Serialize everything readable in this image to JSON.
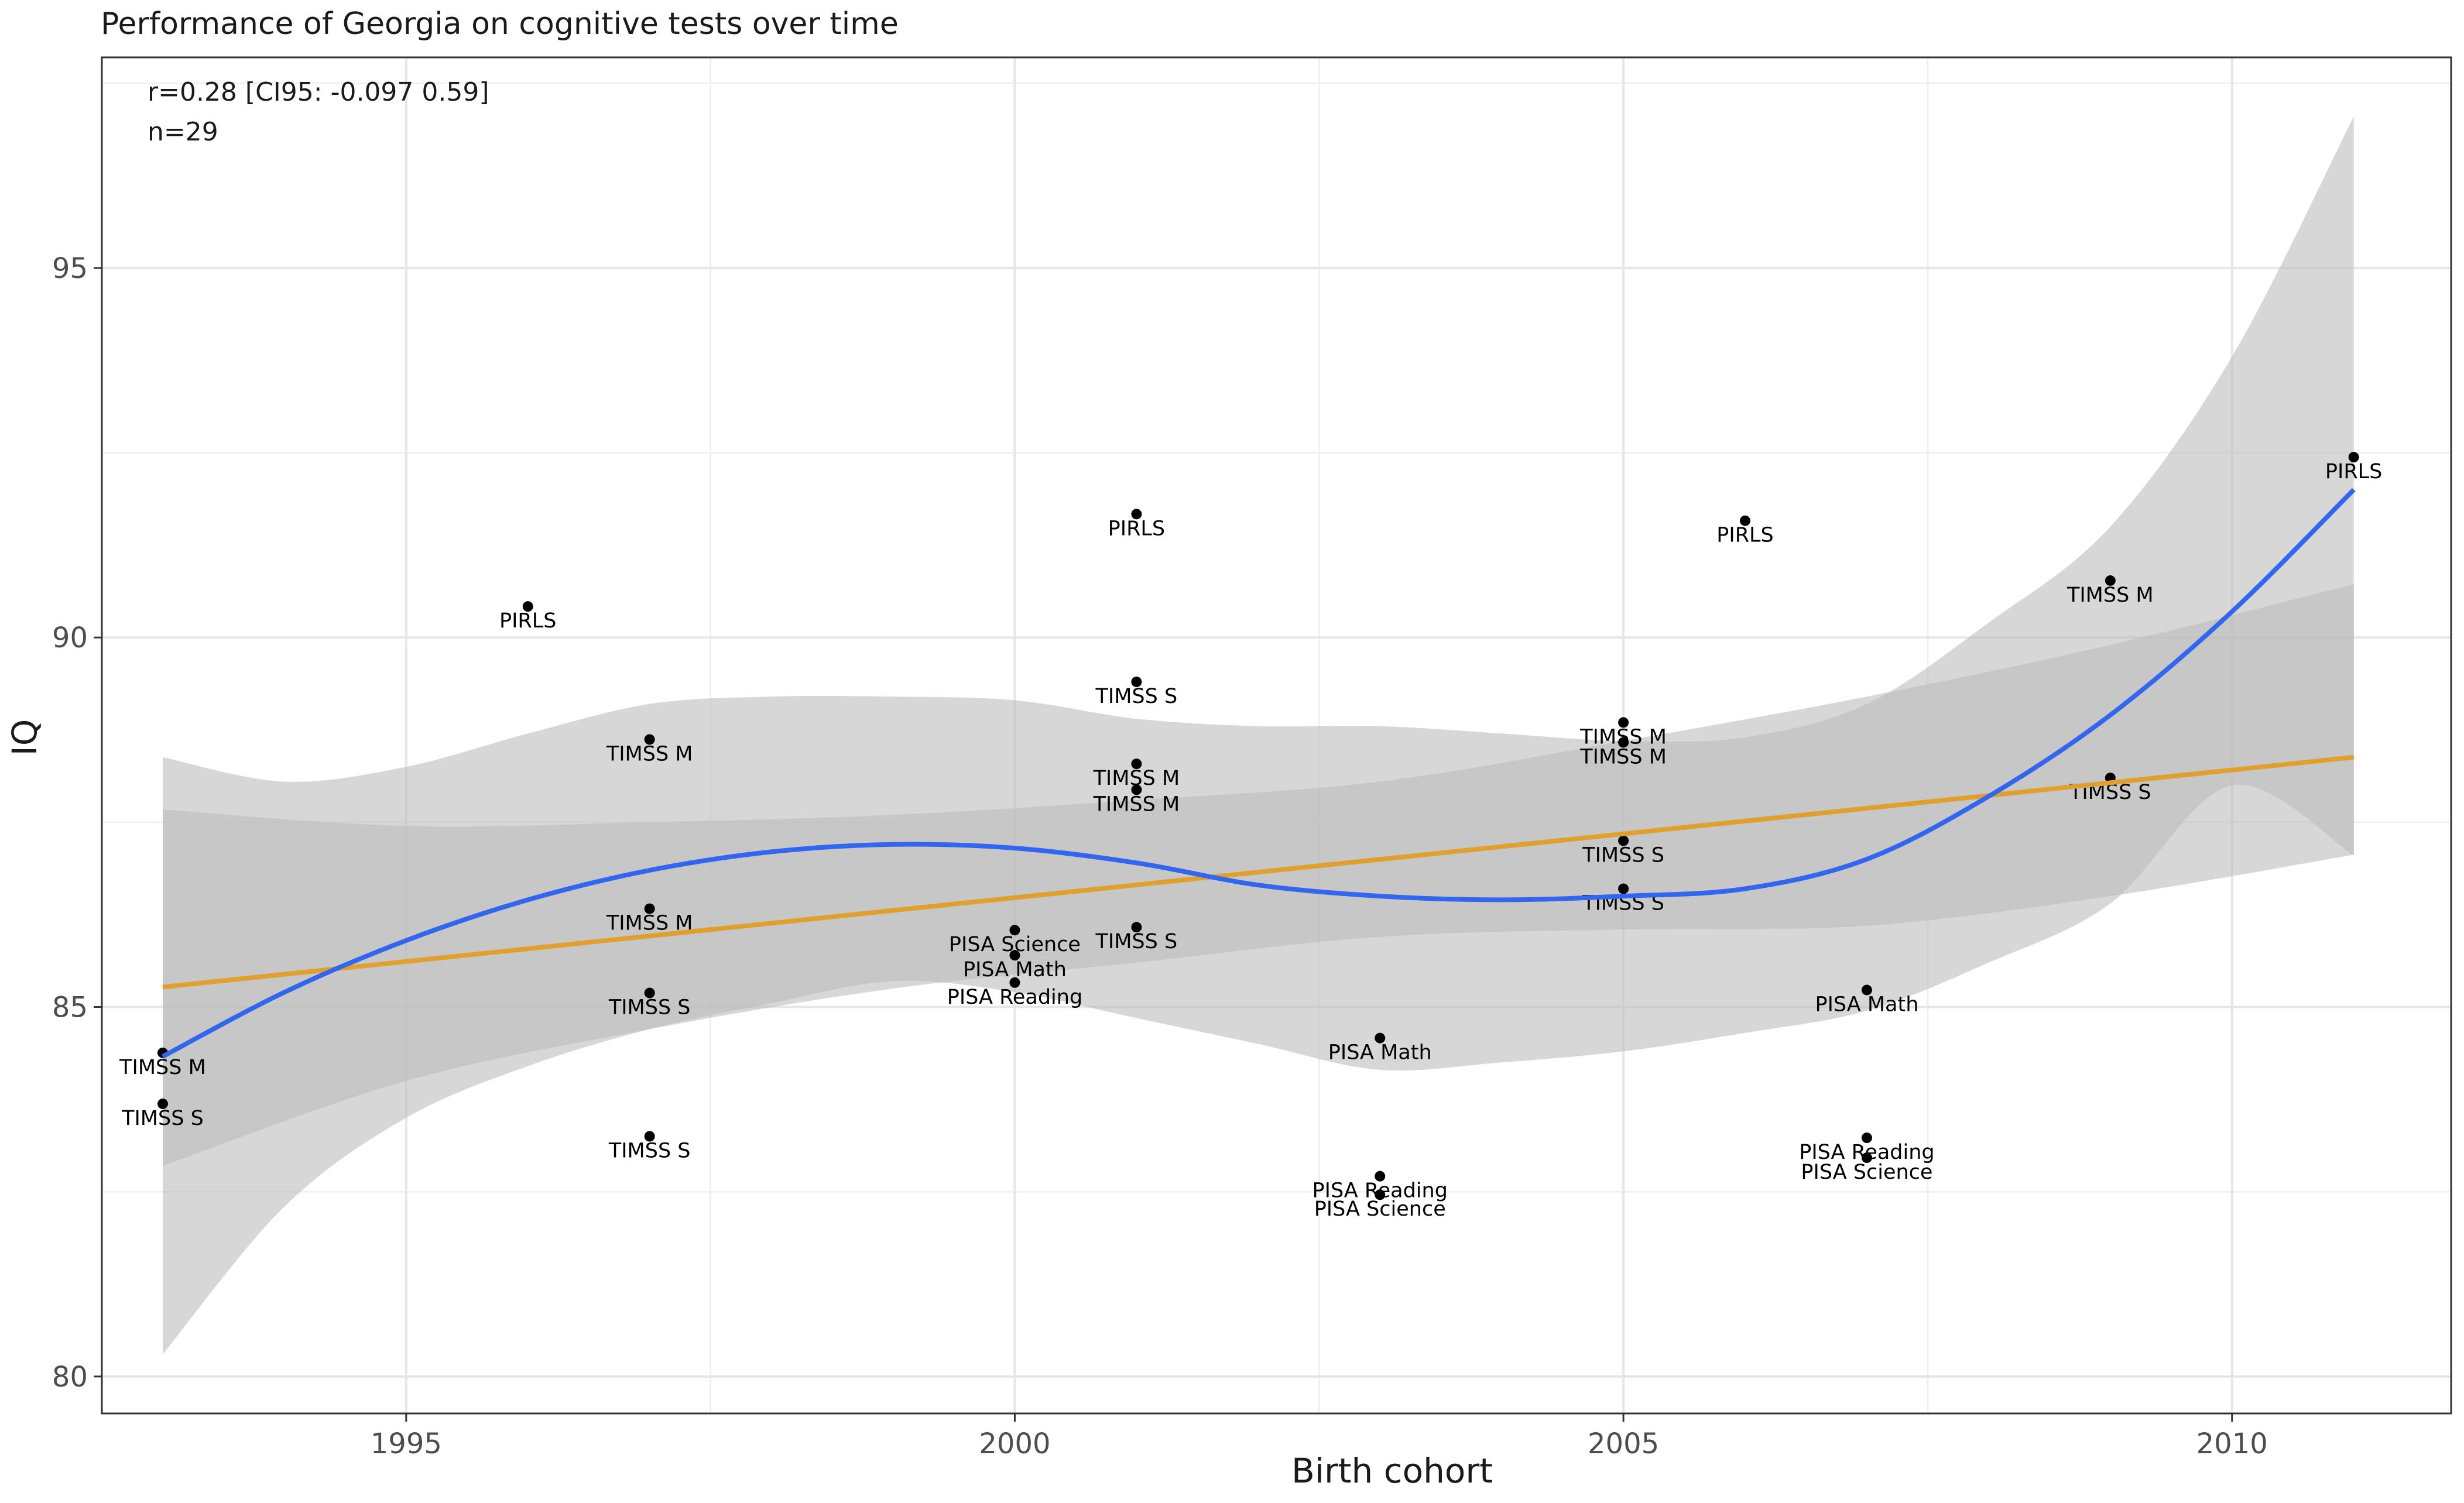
{
  "chart_data": {
    "type": "scatter",
    "title": "Performance of Georgia on cognitive tests over time",
    "xlabel": "Birth cohort",
    "ylabel": "IQ",
    "xlim": [
      1992.5,
      2011.8
    ],
    "ylim": [
      79.5,
      97.85
    ],
    "x_ticks": [
      1995,
      2000,
      2005,
      2010
    ],
    "y_ticks": [
      80,
      85,
      90,
      95
    ],
    "grid": true,
    "stats": [
      "r=0.28 [CI95: -0.097 0.59]",
      "n=29"
    ],
    "colors": {
      "point": "#000000",
      "linear_fit": "#e0a030",
      "loess_fit": "#3366ee",
      "ci_band": "#bdbdbd"
    },
    "points": [
      {
        "x": 1993,
        "y": 84.38,
        "label": "TIMSS M"
      },
      {
        "x": 1993,
        "y": 83.69,
        "label": "TIMSS S"
      },
      {
        "x": 1996,
        "y": 90.42,
        "label": "PIRLS"
      },
      {
        "x": 1997,
        "y": 88.62,
        "label": "TIMSS M"
      },
      {
        "x": 1997,
        "y": 86.33,
        "label": "TIMSS M"
      },
      {
        "x": 1997,
        "y": 85.19,
        "label": "TIMSS S"
      },
      {
        "x": 1997,
        "y": 83.25,
        "label": "TIMSS S"
      },
      {
        "x": 2000,
        "y": 86.04,
        "label": "PISA Science"
      },
      {
        "x": 2000,
        "y": 85.7,
        "label": "PISA Math"
      },
      {
        "x": 2000,
        "y": 85.33,
        "label": "PISA Reading"
      },
      {
        "x": 2001,
        "y": 91.67,
        "label": "PIRLS"
      },
      {
        "x": 2001,
        "y": 89.4,
        "label": "TIMSS S"
      },
      {
        "x": 2001,
        "y": 88.29,
        "label": "TIMSS M"
      },
      {
        "x": 2001,
        "y": 87.94,
        "label": "TIMSS M"
      },
      {
        "x": 2001,
        "y": 86.08,
        "label": "TIMSS S"
      },
      {
        "x": 2003,
        "y": 84.58,
        "label": "PISA Math"
      },
      {
        "x": 2003,
        "y": 82.71,
        "label": "PISA Reading"
      },
      {
        "x": 2003,
        "y": 82.46,
        "label": "PISA Science"
      },
      {
        "x": 2005,
        "y": 88.85,
        "label": "TIMSS M"
      },
      {
        "x": 2005,
        "y": 88.58,
        "label": "TIMSS M"
      },
      {
        "x": 2005,
        "y": 87.25,
        "label": "TIMSS S"
      },
      {
        "x": 2005,
        "y": 86.6,
        "label": "TIMSS S"
      },
      {
        "x": 2006,
        "y": 91.58,
        "label": "PIRLS"
      },
      {
        "x": 2007,
        "y": 85.23,
        "label": "PISA Math"
      },
      {
        "x": 2007,
        "y": 83.23,
        "label": "PISA Reading"
      },
      {
        "x": 2007,
        "y": 82.96,
        "label": "PISA Science"
      },
      {
        "x": 2009,
        "y": 90.77,
        "label": "TIMSS M"
      },
      {
        "x": 2009,
        "y": 88.1,
        "label": "TIMSS S"
      },
      {
        "x": 2011,
        "y": 92.44,
        "label": "PIRLS"
      }
    ],
    "linear_fit": {
      "x": [
        1993,
        2011
      ],
      "y": [
        85.27,
        88.38
      ],
      "ci_lower": [
        82.85,
        87.06
      ],
      "ci_upper": [
        87.67,
        90.72
      ],
      "ci_x": [
        1993,
        1995,
        1997,
        1999,
        2001,
        2003,
        2005,
        2007,
        2009,
        2011
      ],
      "ci_lo_series": [
        82.85,
        84.0,
        84.7,
        85.25,
        85.6,
        85.95,
        86.05,
        86.1,
        86.5,
        87.06
      ],
      "ci_hi_series": [
        87.67,
        87.45,
        87.5,
        87.6,
        87.8,
        88.05,
        88.6,
        89.2,
        89.9,
        90.72
      ]
    },
    "loess_fit": {
      "x": [
        1993,
        1994,
        1995,
        1996,
        1997,
        1998,
        1999,
        2000,
        2001,
        2002,
        2003,
        2004,
        2005,
        2006,
        2007,
        2008,
        2009,
        2010,
        2011
      ],
      "y": [
        84.33,
        85.2,
        85.9,
        86.45,
        86.85,
        87.1,
        87.2,
        87.15,
        86.95,
        86.65,
        86.5,
        86.45,
        86.5,
        86.6,
        87.0,
        87.85,
        88.95,
        90.35,
        92.0
      ],
      "ci_lower": [
        80.3,
        82.3,
        83.5,
        84.2,
        84.7,
        85.05,
        85.35,
        85.2,
        84.85,
        84.5,
        84.15,
        84.25,
        84.4,
        84.65,
        84.95,
        85.6,
        86.4,
        88.0,
        87.05
      ],
      "ci_upper": [
        88.38,
        88.05,
        88.25,
        88.7,
        89.1,
        89.2,
        89.2,
        89.15,
        88.9,
        88.8,
        88.8,
        88.7,
        88.6,
        88.65,
        89.1,
        90.2,
        91.5,
        93.8,
        97.05
      ]
    }
  }
}
